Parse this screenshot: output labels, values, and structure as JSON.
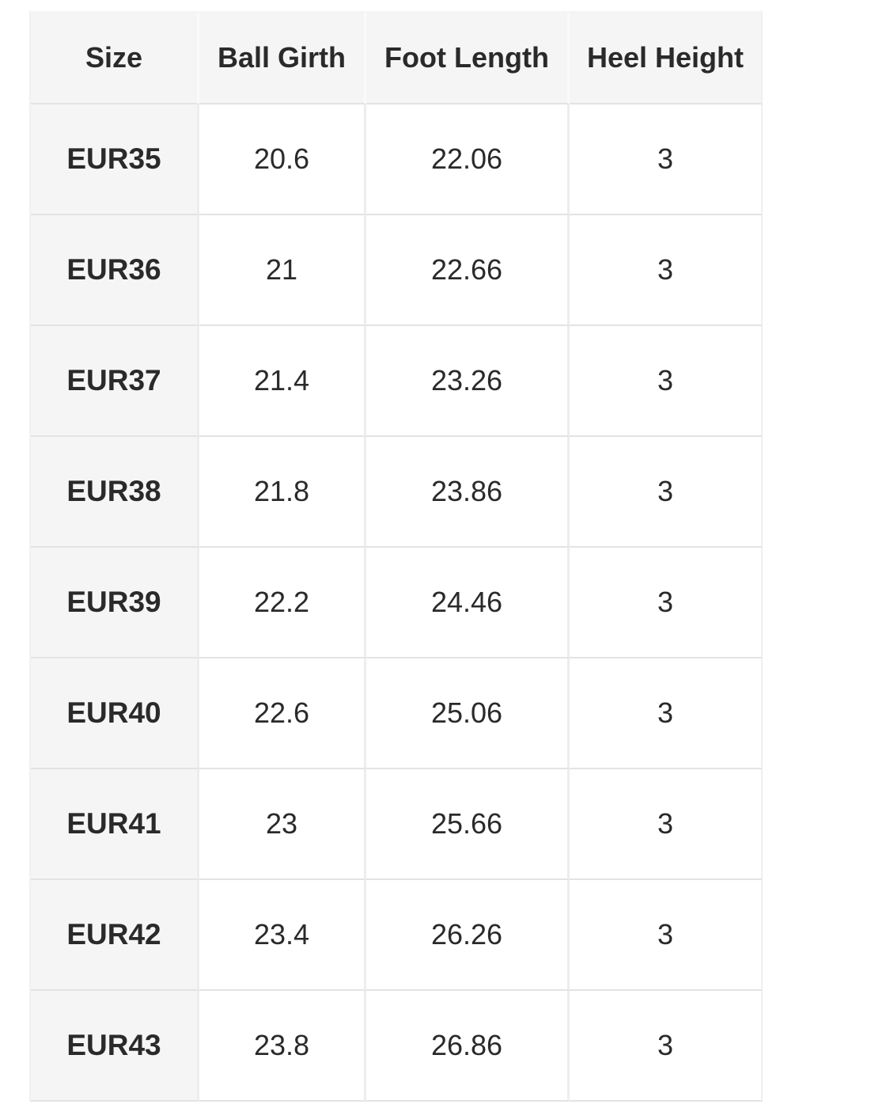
{
  "size_chart": {
    "columns": [
      "Size",
      "Ball Girth",
      "Foot Length",
      "Heel Height"
    ],
    "rows": [
      [
        "EUR35",
        "20.6",
        "22.06",
        "3"
      ],
      [
        "EUR36",
        "21",
        "22.66",
        "3"
      ],
      [
        "EUR37",
        "21.4",
        "23.26",
        "3"
      ],
      [
        "EUR38",
        "21.8",
        "23.86",
        "3"
      ],
      [
        "EUR39",
        "22.2",
        "24.46",
        "3"
      ],
      [
        "EUR40",
        "22.6",
        "25.06",
        "3"
      ],
      [
        "EUR41",
        "23",
        "25.66",
        "3"
      ],
      [
        "EUR42",
        "23.4",
        "26.26",
        "3"
      ],
      [
        "EUR43",
        "23.8",
        "26.86",
        "3"
      ]
    ],
    "colors": {
      "header_bg": "#f5f5f5",
      "row_label_bg": "#f5f5f5",
      "cell_bg": "#ffffff",
      "border_horizontal": "#e3e3e3",
      "border_vertical": "#ededed",
      "text": "#2a2a2a"
    }
  }
}
